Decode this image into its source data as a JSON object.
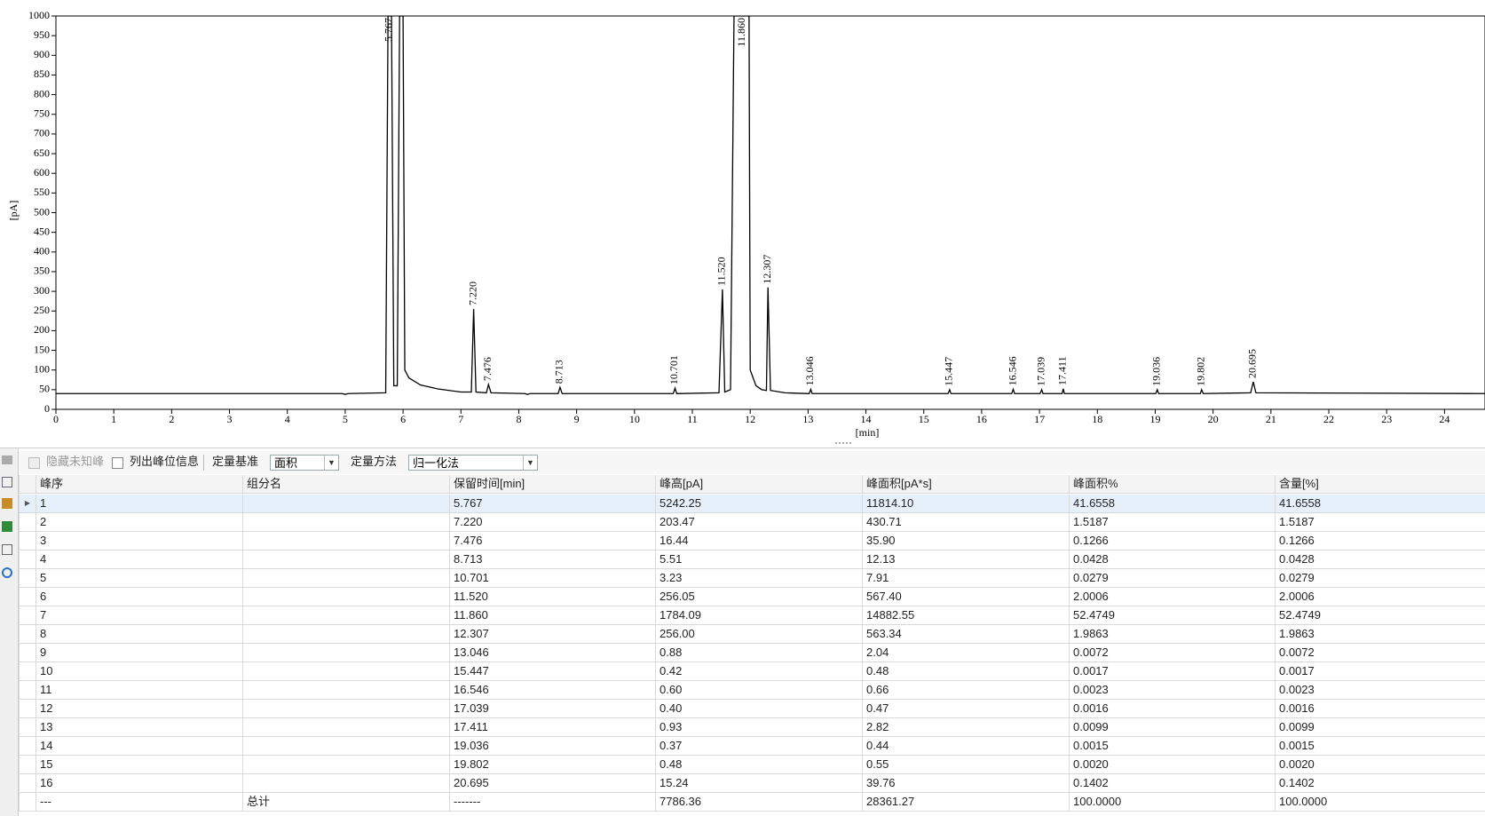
{
  "chart_data": {
    "type": "line",
    "xlabel": "[min]",
    "ylabel": "[pA]",
    "xlim": [
      0,
      24.7
    ],
    "ylim": [
      0,
      1000
    ],
    "xticks": [
      0,
      1,
      2,
      3,
      4,
      5,
      6,
      7,
      8,
      9,
      10,
      11,
      12,
      13,
      14,
      15,
      16,
      17,
      18,
      19,
      20,
      21,
      22,
      23,
      24
    ],
    "yticks": [
      0,
      50,
      100,
      150,
      200,
      250,
      300,
      350,
      400,
      450,
      500,
      550,
      600,
      650,
      700,
      750,
      800,
      850,
      900,
      950,
      1000
    ],
    "series": [
      {
        "color": "#000000",
        "x": [
          0,
          4.95,
          5.0,
          5.05,
          5.7,
          5.74,
          5.8,
          5.84,
          5.9,
          5.94,
          6.0,
          6.03,
          6.1,
          6.3,
          6.6,
          7.0,
          7.18,
          7.22,
          7.26,
          7.44,
          7.476,
          7.52,
          8.1,
          8.15,
          8.2,
          8.68,
          8.713,
          8.75,
          10.67,
          10.701,
          10.73,
          11.46,
          11.52,
          11.56,
          11.66,
          11.72,
          11.98,
          12.0,
          12.1,
          12.2,
          12.28,
          12.307,
          12.35,
          12.6,
          13.02,
          13.046,
          13.07,
          15.42,
          15.447,
          15.47,
          16.52,
          16.546,
          16.57,
          17.01,
          17.039,
          17.06,
          17.39,
          17.411,
          17.43,
          19.01,
          19.036,
          19.06,
          19.78,
          19.802,
          19.83,
          20.65,
          20.695,
          20.74,
          24.7
        ],
        "values": [
          40,
          40,
          38,
          40,
          42,
          1000,
          1000,
          60,
          60,
          1000,
          1000,
          100,
          80,
          62,
          52,
          44,
          44,
          255,
          44,
          42,
          63,
          42,
          40,
          38,
          40,
          40,
          56,
          40,
          40,
          54,
          40,
          42,
          305,
          44,
          50,
          1000,
          1000,
          100,
          60,
          50,
          48,
          310,
          48,
          42,
          40,
          51,
          40,
          40,
          50,
          40,
          40,
          51,
          40,
          40,
          50,
          40,
          40,
          52,
          40,
          40,
          50,
          40,
          40,
          50,
          40,
          42,
          70,
          42,
          40
        ]
      }
    ],
    "annotations": [
      {
        "text": "5.767",
        "x": 5.767,
        "y": 1000
      },
      {
        "text": "7.220",
        "x": 7.22,
        "y": 255
      },
      {
        "text": "7.476",
        "x": 7.476,
        "y": 63
      },
      {
        "text": "8.713",
        "x": 8.713,
        "y": 56
      },
      {
        "text": "10.701",
        "x": 10.701,
        "y": 54
      },
      {
        "text": "11.520",
        "x": 11.52,
        "y": 305
      },
      {
        "text": "11.860",
        "x": 11.86,
        "y": 1000
      },
      {
        "text": "12.307",
        "x": 12.307,
        "y": 310
      },
      {
        "text": "13.046",
        "x": 13.046,
        "y": 51
      },
      {
        "text": "15.447",
        "x": 15.447,
        "y": 50
      },
      {
        "text": "16.546",
        "x": 16.546,
        "y": 51
      },
      {
        "text": "17.039",
        "x": 17.039,
        "y": 50
      },
      {
        "text": "17.411",
        "x": 17.411,
        "y": 52
      },
      {
        "text": "19.036",
        "x": 19.036,
        "y": 50
      },
      {
        "text": "19.802",
        "x": 19.802,
        "y": 50
      },
      {
        "text": "20.695",
        "x": 20.695,
        "y": 70
      }
    ]
  },
  "toolbar": {
    "hide_unknown": "隐藏未知峰",
    "list_peaks": "列出峰位信息",
    "basis_label": "定量基准",
    "basis_value": "面积",
    "method_label": "定量方法",
    "method_value": "归一化法"
  },
  "table": {
    "columns": [
      "峰序",
      "组分名",
      "保留时间[min]",
      "峰高[pA]",
      "峰面积[pA*s]",
      "峰面积%",
      "含量[%]"
    ],
    "rows": [
      [
        "1",
        null,
        "5.767",
        "5242.25",
        "11814.10",
        "41.6558",
        "41.6558"
      ],
      [
        "2",
        null,
        "7.220",
        "203.47",
        "430.71",
        "1.5187",
        "1.5187"
      ],
      [
        "3",
        null,
        "7.476",
        "16.44",
        "35.90",
        "0.1266",
        "0.1266"
      ],
      [
        "4",
        null,
        "8.713",
        "5.51",
        "12.13",
        "0.0428",
        "0.0428"
      ],
      [
        "5",
        null,
        "10.701",
        "3.23",
        "7.91",
        "0.0279",
        "0.0279"
      ],
      [
        "6",
        null,
        "11.520",
        "256.05",
        "567.40",
        "2.0006",
        "2.0006"
      ],
      [
        "7",
        null,
        "11.860",
        "1784.09",
        "14882.55",
        "52.4749",
        "52.4749"
      ],
      [
        "8",
        null,
        "12.307",
        "256.00",
        "563.34",
        "1.9863",
        "1.9863"
      ],
      [
        "9",
        null,
        "13.046",
        "0.88",
        "2.04",
        "0.0072",
        "0.0072"
      ],
      [
        "10",
        null,
        "15.447",
        "0.42",
        "0.48",
        "0.0017",
        "0.0017"
      ],
      [
        "11",
        null,
        "16.546",
        "0.60",
        "0.66",
        "0.0023",
        "0.0023"
      ],
      [
        "12",
        null,
        "17.039",
        "0.40",
        "0.47",
        "0.0016",
        "0.0016"
      ],
      [
        "13",
        null,
        "17.411",
        "0.93",
        "2.82",
        "0.0099",
        "0.0099"
      ],
      [
        "14",
        null,
        "19.036",
        "0.37",
        "0.44",
        "0.0015",
        "0.0015"
      ],
      [
        "15",
        null,
        "19.802",
        "0.48",
        "0.55",
        "0.0020",
        "0.0020"
      ],
      [
        "16",
        null,
        "20.695",
        "15.24",
        "39.76",
        "0.1402",
        "0.1402"
      ],
      [
        "---",
        "总计",
        "-------",
        "7786.36",
        "28361.27",
        "100.0000",
        "100.0000"
      ]
    ]
  }
}
